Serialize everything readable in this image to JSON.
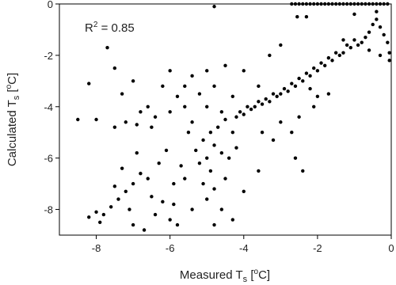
{
  "chart_data": {
    "type": "scatter",
    "x_label": [
      "Measured T",
      "s",
      " [",
      "o",
      "C]"
    ],
    "y_label": [
      "Calculated T",
      "s",
      " [",
      "o",
      "C]"
    ],
    "annotation": [
      "R",
      "2",
      " = 0.85"
    ],
    "color": "#000000",
    "xlim": [
      -9,
      0
    ],
    "xticks": [
      -8,
      -6,
      -4,
      -2,
      0
    ],
    "ylim": [
      -9,
      0
    ],
    "yticks": [
      -8,
      -6,
      -4,
      -2,
      0
    ],
    "x": [
      -2.7,
      -2.6,
      -2.5,
      -2.4,
      -2.3,
      -2.2,
      -2.1,
      -2.0,
      -1.9,
      -1.8,
      -1.7,
      -1.6,
      -1.5,
      -1.4,
      -1.3,
      -1.2,
      -1.1,
      -1.0,
      -0.9,
      -0.8,
      -0.7,
      -0.6,
      -0.5,
      -0.4,
      -0.3,
      -0.2,
      -0.1,
      -2.55,
      -2.3,
      -0.05,
      -0.05,
      -0.1,
      -0.2,
      -0.3,
      -0.4,
      -0.5,
      -0.6,
      -0.7,
      -0.8,
      -0.9,
      -1.0,
      -1.1,
      -1.2,
      -1.3,
      -1.4,
      -1.5,
      -1.6,
      -1.7,
      -1.8,
      -1.9,
      -2.0,
      -2.1,
      -2.2,
      -2.3,
      -2.4,
      -2.5,
      -2.6,
      -2.7,
      -2.8,
      -2.9,
      -3.0,
      -3.1,
      -3.2,
      -3.3,
      -3.4,
      -3.5,
      -3.6,
      -3.7,
      -3.8,
      -3.9,
      -4.0,
      -4.1,
      -4.2,
      -0.3,
      -0.6,
      -1.0,
      -0.4,
      -1.3,
      -2.0,
      -2.2,
      -2.5,
      -2.1,
      -1.7,
      -2.6,
      -2.4,
      -2.7,
      -3.0,
      -3.5,
      -3.2,
      -3.6,
      -4.0,
      -4.3,
      -4.2,
      -4.5,
      -4.7,
      -4.9,
      -5.1,
      -4.8,
      -4.6,
      -5.0,
      -5.2,
      -4.4,
      -4.9,
      -5.3,
      -5.5,
      -4.6,
      -5.0,
      -5.4,
      -4.3,
      -4.5,
      -5.1,
      -4.8,
      -5.6,
      -5.0,
      -4.6,
      -4.8,
      -5.4,
      -5.9,
      -8.5,
      -8.0,
      -8.2,
      -7.7,
      -7.5,
      -7.3,
      -7.0,
      -6.9,
      -6.6,
      -6.4,
      -6.2,
      -6.0,
      -5.8,
      -5.6,
      -5.4,
      -5.2,
      -5.0,
      -4.8,
      -4.5,
      -4.3,
      -4.0,
      -3.6,
      -3.3,
      -3.0,
      -4.8,
      -6.8,
      -7.2,
      -7.5,
      -6.5,
      -6.0,
      -5.6,
      -8.2,
      -8.0,
      -7.8,
      -7.6,
      -7.9,
      -7.4,
      -7.2,
      -7.0,
      -6.8,
      -6.6,
      -6.5,
      -6.2,
      -6.4,
      -6.0,
      -6.7,
      -7.0,
      -5.8,
      -6.3,
      -6.9,
      -7.3,
      -7.5,
      -5.9,
      -5.7,
      -6.1,
      -7.1
    ],
    "values": [
      0,
      0,
      0,
      0,
      0,
      0,
      0,
      0,
      0,
      0,
      0,
      0,
      0,
      0,
      0,
      0,
      0,
      0,
      0,
      0,
      0,
      0,
      0,
      0,
      0,
      0,
      0,
      -0.5,
      -0.5,
      -2.2,
      -1.9,
      -1.5,
      -1.2,
      -0.9,
      -0.6,
      -0.8,
      -1.1,
      -1.3,
      -1.5,
      -1.6,
      -1.4,
      -1.7,
      -1.6,
      -1.9,
      -2.0,
      -1.9,
      -2.2,
      -2.1,
      -2.4,
      -2.3,
      -2.6,
      -2.5,
      -2.8,
      -2.7,
      -3.0,
      -2.9,
      -3.2,
      -3.1,
      -3.4,
      -3.3,
      -3.5,
      -3.6,
      -3.5,
      -3.8,
      -3.7,
      -3.9,
      -3.8,
      -4.0,
      -4.1,
      -4.0,
      -4.3,
      -4.2,
      -4.4,
      -2.0,
      -1.8,
      -0.4,
      -0.3,
      -1.4,
      -3.6,
      -3.3,
      -4.4,
      -4.0,
      -3.5,
      -6.0,
      -6.5,
      -5.0,
      -4.6,
      -5.0,
      -5.3,
      -6.5,
      -7.3,
      -8.4,
      -5.6,
      -4.5,
      -4.8,
      -5.0,
      -5.3,
      -5.5,
      -5.8,
      -6.0,
      -6.2,
      -6.0,
      -6.5,
      -5.7,
      -5.0,
      -4.2,
      -4.0,
      -4.6,
      -5.0,
      -6.8,
      -7.0,
      -7.2,
      -6.8,
      -7.6,
      -8.0,
      -8.6,
      -8.0,
      -7.8,
      -4.5,
      -4.5,
      -3.1,
      -1.7,
      -2.5,
      -3.5,
      -3.0,
      -4.7,
      -4.0,
      -4.4,
      -3.2,
      -2.6,
      -3.6,
      -3.2,
      -2.8,
      -3.5,
      -2.6,
      -3.2,
      -2.4,
      -3.6,
      -2.6,
      -3.2,
      -2.0,
      -1.6,
      -0.1,
      -4.2,
      -4.6,
      -4.8,
      -4.8,
      -4.2,
      -4.0,
      -8.3,
      -8.1,
      -8.2,
      -7.9,
      -8.5,
      -7.6,
      -7.3,
      -7.0,
      -6.6,
      -6.8,
      -7.5,
      -7.7,
      -8.2,
      -8.4,
      -8.8,
      -8.6,
      -8.6,
      -6.2,
      -5.8,
      -6.4,
      -7.1,
      -7.0,
      -6.3,
      -5.7,
      -8.0
    ]
  }
}
